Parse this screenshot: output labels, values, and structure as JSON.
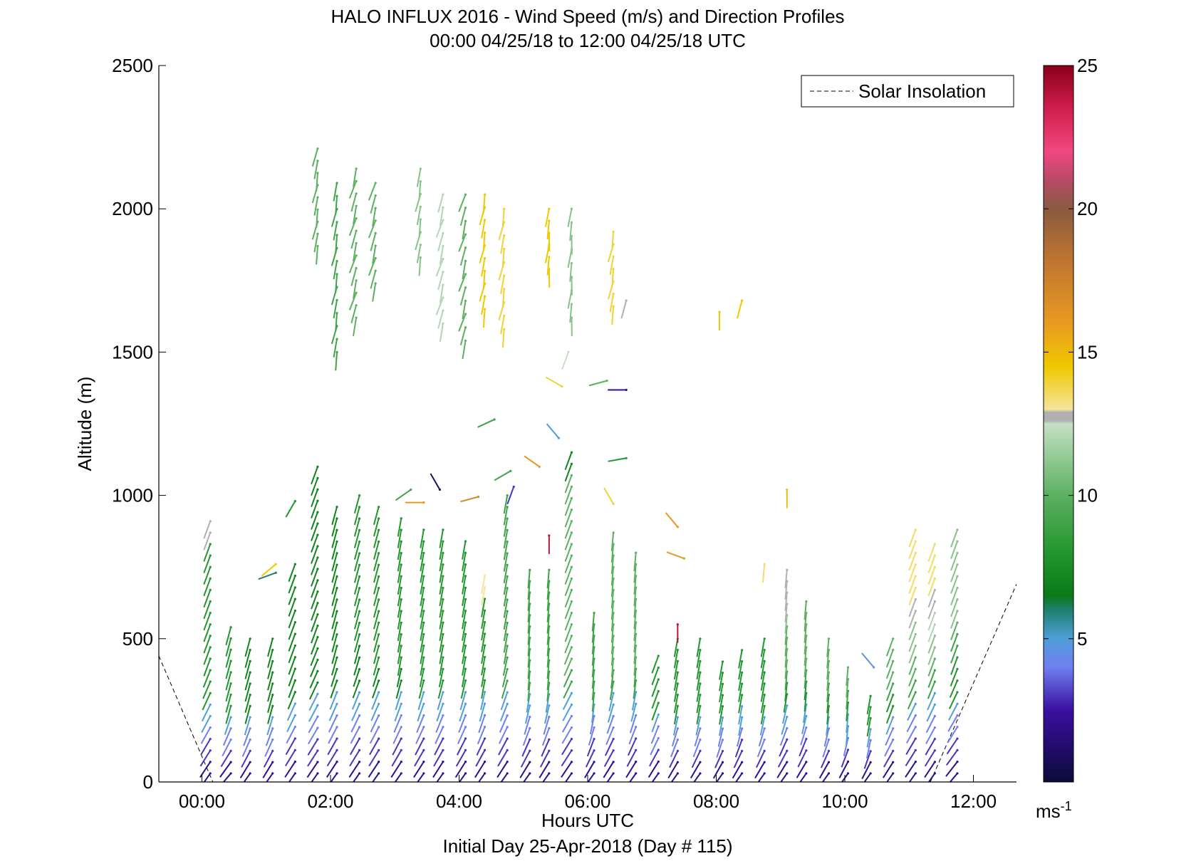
{
  "chart_data": {
    "type": "wind_barb_profile",
    "title": "HALO INFLUX 2016 - Wind Speed (m/s) and Direction Profiles",
    "subtitle": "00:00 04/25/18 to 12:00 04/25/18  UTC",
    "xlabel": "Hours UTC",
    "xlabel2": "Initial Day 25-Apr-2018 (Day # 115)",
    "ylabel": "Altitude (m)",
    "xlim": [
      -0.67,
      12.67
    ],
    "ylim": [
      0,
      2500
    ],
    "x_ticks": [
      0,
      2,
      4,
      6,
      8,
      10,
      12
    ],
    "x_tick_labels": [
      "00:00",
      "02:00",
      "04:00",
      "06:00",
      "08:00",
      "10:00",
      "12:00"
    ],
    "y_ticks": [
      0,
      500,
      1000,
      1500,
      2000,
      2500
    ],
    "y_tick_labels": [
      "0",
      "500",
      "1000",
      "1500",
      "2000",
      "2500"
    ],
    "legend": {
      "label": "Solar Insolation",
      "style": "dashed",
      "color": "#000000",
      "placement": "top-right"
    },
    "colorbar": {
      "range": [
        0,
        25
      ],
      "ticks": [
        5,
        10,
        15,
        20,
        25
      ],
      "tick_labels": [
        "5",
        "10",
        "15",
        "20",
        "25"
      ],
      "unit_label": "ms",
      "unit_exp": "-1",
      "stops": [
        {
          "v": 0,
          "c": "#0b0b3a"
        },
        {
          "v": 2.5,
          "c": "#3a0fa0"
        },
        {
          "v": 4.0,
          "c": "#6f7ff0"
        },
        {
          "v": 5.0,
          "c": "#4f9fd8"
        },
        {
          "v": 6.0,
          "c": "#1f7f70"
        },
        {
          "v": 6.5,
          "c": "#0a7a18"
        },
        {
          "v": 8.0,
          "c": "#22962e"
        },
        {
          "v": 10.0,
          "c": "#5cb060"
        },
        {
          "v": 12.5,
          "c": "#c6e0c4"
        },
        {
          "v": 12.6,
          "c": "#b0b0b0"
        },
        {
          "v": 12.9,
          "c": "#b0b0b0"
        },
        {
          "v": 13.0,
          "c": "#f4e49a"
        },
        {
          "v": 14.5,
          "c": "#f0c800"
        },
        {
          "v": 16.0,
          "c": "#e89a20"
        },
        {
          "v": 18.0,
          "c": "#c47830"
        },
        {
          "v": 20.0,
          "c": "#8a5a40"
        },
        {
          "v": 21.0,
          "c": "#b84a68"
        },
        {
          "v": 22.0,
          "c": "#f04880"
        },
        {
          "v": 23.5,
          "c": "#d01e4e"
        },
        {
          "v": 25.0,
          "c": "#8a0018"
        }
      ]
    },
    "solar_insolation": [
      {
        "x": [
          -0.67,
          0.17
        ],
        "y": [
          440,
          0
        ]
      },
      {
        "x": [
          11.33,
          12.67
        ],
        "y": [
          0,
          690
        ]
      }
    ],
    "profiles": [
      {
        "t": 0.13,
        "ylow": 30,
        "ytop": 910,
        "base_dir": 215,
        "top_dir": 200,
        "speeds": [
          2,
          3,
          4,
          5,
          8,
          8,
          8,
          8,
          8,
          8,
          8,
          8,
          8,
          12.7
        ]
      },
      {
        "t": 0.45,
        "ylow": 30,
        "ytop": 540,
        "base_dir": 220,
        "top_dir": 195,
        "speeds": [
          2,
          3,
          4,
          5,
          8,
          8,
          8,
          8,
          8
        ]
      },
      {
        "t": 0.75,
        "ylow": 30,
        "ytop": 500,
        "base_dir": 215,
        "top_dir": 195,
        "speeds": [
          2,
          3,
          4,
          5,
          7,
          7,
          7,
          7
        ]
      },
      {
        "t": 1.1,
        "ylow": 30,
        "ytop": 500,
        "base_dir": 215,
        "top_dir": 195,
        "speeds": [
          2,
          3,
          4,
          5,
          7,
          7,
          7,
          7
        ]
      },
      {
        "t": 1.45,
        "ylow": 30,
        "ytop": 760,
        "base_dir": 215,
        "top_dir": 200,
        "speeds": [
          2,
          3,
          4,
          5,
          7,
          7,
          7,
          7,
          7,
          7,
          7
        ]
      },
      {
        "t": 1.8,
        "ylow": 30,
        "ytop": 1100,
        "base_dir": 215,
        "top_dir": 200,
        "speeds": [
          2,
          3,
          4,
          5,
          7,
          7,
          7,
          7,
          7,
          7,
          7,
          7,
          7,
          7,
          7
        ]
      },
      {
        "t": 2.1,
        "ylow": 30,
        "ytop": 960,
        "base_dir": 215,
        "top_dir": 195,
        "speeds": [
          2,
          3,
          4,
          5,
          7,
          7,
          7,
          7,
          7,
          7,
          7,
          7,
          7
        ]
      },
      {
        "t": 2.45,
        "ylow": 30,
        "ytop": 1000,
        "base_dir": 215,
        "top_dir": 195,
        "speeds": [
          2,
          3,
          4,
          5,
          7,
          7,
          8,
          8,
          8,
          8,
          8,
          8,
          8
        ]
      },
      {
        "t": 2.75,
        "ylow": 30,
        "ytop": 960,
        "base_dir": 215,
        "top_dir": 195,
        "speeds": [
          2,
          3,
          4,
          5,
          7,
          8,
          8,
          8,
          8,
          8,
          8,
          8
        ]
      },
      {
        "t": 3.1,
        "ylow": 30,
        "ytop": 920,
        "base_dir": 215,
        "top_dir": 190,
        "speeds": [
          2,
          3,
          4,
          5,
          7,
          8,
          8,
          8,
          8,
          8,
          8,
          8
        ]
      },
      {
        "t": 3.45,
        "ylow": 30,
        "ytop": 880,
        "base_dir": 215,
        "top_dir": 190,
        "speeds": [
          2,
          3,
          4,
          5,
          8,
          8,
          8,
          8,
          8,
          8,
          8
        ]
      },
      {
        "t": 3.75,
        "ylow": 30,
        "ytop": 880,
        "base_dir": 215,
        "top_dir": 190,
        "speeds": [
          2,
          3,
          4,
          5,
          8,
          8,
          8,
          8,
          8,
          8,
          8
        ]
      },
      {
        "t": 4.1,
        "ylow": 30,
        "ytop": 840,
        "base_dir": 215,
        "top_dir": 190,
        "speeds": [
          2,
          3,
          4,
          5,
          8,
          8,
          8,
          8,
          8,
          8
        ]
      },
      {
        "t": 4.4,
        "ylow": 30,
        "ytop": 720,
        "base_dir": 215,
        "top_dir": 190,
        "speeds": [
          2,
          3,
          4,
          5,
          8,
          8,
          8,
          8,
          13
        ]
      },
      {
        "t": 4.75,
        "ylow": 30,
        "ytop": 1000,
        "base_dir": 215,
        "top_dir": 190,
        "speeds": [
          2,
          3,
          4,
          5,
          9,
          9,
          9,
          9,
          9,
          9,
          9,
          9,
          9
        ]
      },
      {
        "t": 5.1,
        "ylow": 30,
        "ytop": 740,
        "base_dir": 215,
        "top_dir": 185,
        "speeds": [
          2,
          3,
          4,
          5,
          9,
          9,
          9,
          9,
          9
        ]
      },
      {
        "t": 5.4,
        "ylow": 30,
        "ytop": 740,
        "base_dir": 215,
        "top_dir": 185,
        "speeds": [
          2,
          3,
          4,
          5,
          9,
          9,
          9,
          9,
          9
        ]
      },
      {
        "t": 5.75,
        "ylow": 30,
        "ytop": 1150,
        "base_dir": 215,
        "top_dir": 200,
        "speeds": [
          2,
          3,
          4,
          5,
          9,
          10,
          10,
          10,
          10,
          10,
          10,
          10,
          10,
          10,
          7
        ]
      },
      {
        "t": 6.1,
        "ylow": 30,
        "ytop": 590,
        "base_dir": 215,
        "top_dir": 185,
        "speeds": [
          2,
          3,
          4,
          5,
          9,
          9,
          9,
          9
        ]
      },
      {
        "t": 6.4,
        "ylow": 30,
        "ytop": 870,
        "base_dir": 215,
        "top_dir": 185,
        "speeds": [
          2,
          3,
          4,
          5,
          9,
          10,
          10,
          10,
          10,
          10,
          10
        ]
      },
      {
        "t": 6.75,
        "ylow": 30,
        "ytop": 800,
        "base_dir": 215,
        "top_dir": 185,
        "speeds": [
          2,
          3,
          4,
          5,
          9,
          10,
          10,
          10,
          10,
          10
        ]
      },
      {
        "t": 7.1,
        "ylow": 30,
        "ytop": 440,
        "base_dir": 215,
        "top_dir": 200,
        "speeds": [
          2,
          3,
          4,
          5,
          8,
          8,
          8
        ]
      },
      {
        "t": 7.4,
        "ylow": 30,
        "ytop": 500,
        "base_dir": 215,
        "top_dir": 190,
        "speeds": [
          2,
          3,
          4,
          5,
          8,
          8,
          8,
          8
        ]
      },
      {
        "t": 7.75,
        "ylow": 30,
        "ytop": 500,
        "base_dir": 215,
        "top_dir": 190,
        "speeds": [
          2,
          3,
          4,
          5,
          8,
          8,
          8,
          8
        ]
      },
      {
        "t": 8.1,
        "ylow": 30,
        "ytop": 420,
        "base_dir": 215,
        "top_dir": 190,
        "speeds": [
          2,
          3,
          4,
          5,
          8,
          8,
          8
        ]
      },
      {
        "t": 8.4,
        "ylow": 30,
        "ytop": 460,
        "base_dir": 215,
        "top_dir": 190,
        "speeds": [
          2,
          3,
          4,
          5,
          8,
          8,
          8
        ]
      },
      {
        "t": 8.75,
        "ylow": 30,
        "ytop": 500,
        "base_dir": 215,
        "top_dir": 190,
        "speeds": [
          2,
          3,
          4,
          5,
          8,
          8,
          8,
          8
        ]
      },
      {
        "t": 9.1,
        "ylow": 30,
        "ytop": 740,
        "base_dir": 215,
        "top_dir": 185,
        "speeds": [
          2,
          3,
          4,
          5,
          8,
          9,
          10,
          10,
          11,
          12.7,
          12.7
        ]
      },
      {
        "t": 9.4,
        "ylow": 30,
        "ytop": 630,
        "base_dir": 215,
        "top_dir": 185,
        "speeds": [
          2,
          3,
          4,
          5,
          8,
          9,
          10,
          10,
          10
        ]
      },
      {
        "t": 9.75,
        "ylow": 30,
        "ytop": 500,
        "base_dir": 215,
        "top_dir": 185,
        "speeds": [
          2,
          3,
          4,
          5,
          8,
          9,
          10,
          10
        ]
      },
      {
        "t": 10.05,
        "ylow": 30,
        "ytop": 400,
        "base_dir": 215,
        "top_dir": 185,
        "speeds": [
          2,
          3,
          4,
          5,
          8,
          9,
          10
        ]
      },
      {
        "t": 10.4,
        "ylow": 30,
        "ytop": 300,
        "base_dir": 215,
        "top_dir": 190,
        "speeds": [
          2,
          3,
          4,
          5,
          8,
          8
        ]
      },
      {
        "t": 10.75,
        "ylow": 30,
        "ytop": 500,
        "base_dir": 215,
        "top_dir": 200,
        "speeds": [
          2,
          3,
          4,
          5,
          8,
          9,
          10,
          10
        ]
      },
      {
        "t": 11.1,
        "ylow": 30,
        "ytop": 880,
        "base_dir": 215,
        "top_dir": 200,
        "speeds": [
          2,
          3,
          4,
          5,
          9,
          10,
          11,
          11,
          12.7,
          13.5,
          13.5,
          13.5
        ]
      },
      {
        "t": 11.4,
        "ylow": 30,
        "ytop": 830,
        "base_dir": 215,
        "top_dir": 200,
        "speeds": [
          2,
          3,
          4,
          5,
          9,
          10,
          11,
          12,
          12.7,
          13.5,
          13.5
        ]
      },
      {
        "t": 11.75,
        "ylow": 30,
        "ytop": 880,
        "base_dir": 220,
        "top_dir": 200,
        "speeds": [
          2,
          3,
          4,
          5,
          8,
          8,
          9,
          10,
          11,
          11,
          11,
          11
        ]
      }
    ],
    "upper_profiles": [
      {
        "t": 1.8,
        "ylow": 1870,
        "ytop": 2210,
        "dir": 190,
        "speed": 10
      },
      {
        "t": 2.1,
        "ylow": 1500,
        "ytop": 2090,
        "dir": 190,
        "speed": 9
      },
      {
        "t": 2.4,
        "ylow": 1620,
        "ytop": 2140,
        "dir": 195,
        "speed": 10
      },
      {
        "t": 2.7,
        "ylow": 1740,
        "ytop": 2090,
        "dir": 195,
        "speed": 10
      },
      {
        "t": 3.4,
        "ylow": 1830,
        "ytop": 2140,
        "dir": 190,
        "speed": 11
      },
      {
        "t": 3.75,
        "ylow": 1600,
        "ytop": 2050,
        "dir": 195,
        "speed": 12
      },
      {
        "t": 4.1,
        "ylow": 1540,
        "ytop": 2050,
        "dir": 195,
        "speed": 10
      },
      {
        "t": 4.4,
        "ylow": 1650,
        "ytop": 2050,
        "dir": 190,
        "speed": 14.5
      },
      {
        "t": 4.7,
        "ylow": 1580,
        "ytop": 2000,
        "dir": 190,
        "speed": 14
      },
      {
        "t": 5.4,
        "ylow": 1790,
        "ytop": 2000,
        "dir": 185,
        "speed": 14.5
      },
      {
        "t": 5.75,
        "ylow": 1620,
        "ytop": 2000,
        "dir": 185,
        "speed": 11
      },
      {
        "t": 6.4,
        "ylow": 1660,
        "ytop": 1920,
        "dir": 190,
        "speed": 14
      }
    ],
    "isolated_barbs": [
      {
        "t": 1.15,
        "y": 730,
        "dir": 250,
        "speed": 6
      },
      {
        "t": 1.15,
        "y": 760,
        "dir": 230,
        "speed": 14.5
      },
      {
        "t": 1.45,
        "y": 980,
        "dir": 210,
        "speed": 8
      },
      {
        "t": 3.25,
        "y": 1020,
        "dir": 235,
        "speed": 9
      },
      {
        "t": 3.45,
        "y": 975,
        "dir": 270,
        "speed": 16
      },
      {
        "t": 3.7,
        "y": 1020,
        "dir": 330,
        "speed": 1
      },
      {
        "t": 4.3,
        "y": 995,
        "dir": 255,
        "speed": 17
      },
      {
        "t": 4.55,
        "y": 1265,
        "dir": 245,
        "speed": 9
      },
      {
        "t": 4.8,
        "y": 1085,
        "dir": 240,
        "speed": 9
      },
      {
        "t": 4.85,
        "y": 1030,
        "dir": 200,
        "speed": 3
      },
      {
        "t": 5.25,
        "y": 1100,
        "dir": 305,
        "speed": 16
      },
      {
        "t": 5.4,
        "y": 860,
        "dir": 180,
        "speed": 24
      },
      {
        "t": 5.6,
        "y": 1380,
        "dir": 300,
        "speed": 14
      },
      {
        "t": 5.55,
        "y": 1200,
        "dir": 320,
        "speed": 5
      },
      {
        "t": 6.4,
        "y": 970,
        "dir": 330,
        "speed": 14
      },
      {
        "t": 6.3,
        "y": 1400,
        "dir": 255,
        "speed": 10
      },
      {
        "t": 6.6,
        "y": 1130,
        "dir": 260,
        "speed": 8
      },
      {
        "t": 6.6,
        "y": 1368,
        "dir": 270,
        "speed": 2
      },
      {
        "t": 7.4,
        "y": 890,
        "dir": 320,
        "speed": 16
      },
      {
        "t": 7.5,
        "y": 780,
        "dir": 290,
        "speed": 16
      },
      {
        "t": 7.4,
        "y": 550,
        "dir": 180,
        "speed": 24
      },
      {
        "t": 8.05,
        "y": 1640,
        "dir": 180,
        "speed": 14.5
      },
      {
        "t": 8.4,
        "y": 1680,
        "dir": 195,
        "speed": 14.5
      },
      {
        "t": 8.75,
        "y": 760,
        "dir": 185,
        "speed": 13.5
      },
      {
        "t": 9.1,
        "y": 1020,
        "dir": 180,
        "speed": 15
      },
      {
        "t": 10.45,
        "y": 400,
        "dir": 320,
        "speed": 4.5
      },
      {
        "t": 6.6,
        "y": 1680,
        "dir": 195,
        "speed": 12.7
      },
      {
        "t": 5.7,
        "y": 1500,
        "dir": 200,
        "speed": 12.5
      }
    ]
  }
}
